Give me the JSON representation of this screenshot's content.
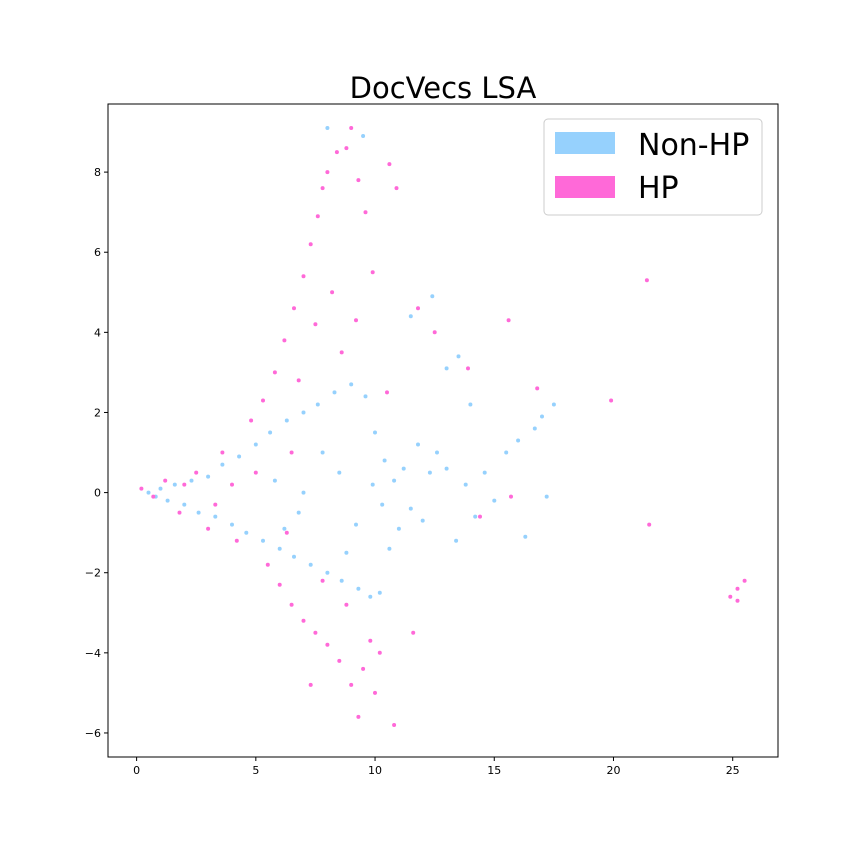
{
  "chart_data": {
    "type": "scatter",
    "title": "DocVecs LSA",
    "xlabel": "",
    "ylabel": "",
    "xlim": [
      -1.2,
      26.9
    ],
    "ylim": [
      -6.6,
      9.7
    ],
    "xticks": [
      0,
      5,
      10,
      15,
      20,
      25
    ],
    "yticks": [
      -6,
      -4,
      -2,
      0,
      2,
      4,
      6,
      8
    ],
    "grid": false,
    "legend_position": "top-right",
    "series": [
      {
        "name": "Non-HP",
        "color": "#96d1fd",
        "points": [
          [
            0.5,
            0.0
          ],
          [
            0.8,
            -0.1
          ],
          [
            1.0,
            0.1
          ],
          [
            1.3,
            -0.2
          ],
          [
            1.6,
            0.2
          ],
          [
            2.0,
            -0.3
          ],
          [
            2.3,
            0.3
          ],
          [
            2.6,
            -0.5
          ],
          [
            3.0,
            0.4
          ],
          [
            3.3,
            -0.6
          ],
          [
            3.6,
            0.7
          ],
          [
            4.0,
            -0.8
          ],
          [
            4.3,
            0.9
          ],
          [
            4.6,
            -1.0
          ],
          [
            5.0,
            1.2
          ],
          [
            5.3,
            -1.2
          ],
          [
            5.6,
            1.5
          ],
          [
            6.0,
            -1.4
          ],
          [
            6.3,
            1.8
          ],
          [
            6.6,
            -1.6
          ],
          [
            7.0,
            2.0
          ],
          [
            7.3,
            -1.8
          ],
          [
            7.6,
            2.2
          ],
          [
            8.0,
            -2.0
          ],
          [
            8.3,
            2.5
          ],
          [
            8.6,
            -2.2
          ],
          [
            9.0,
            2.7
          ],
          [
            9.3,
            -2.4
          ],
          [
            9.6,
            2.4
          ],
          [
            9.8,
            -2.6
          ],
          [
            10.0,
            1.5
          ],
          [
            10.2,
            -2.5
          ],
          [
            10.4,
            0.8
          ],
          [
            10.6,
            -1.4
          ],
          [
            10.8,
            0.3
          ],
          [
            11.0,
            -0.9
          ],
          [
            11.2,
            0.6
          ],
          [
            11.5,
            -0.4
          ],
          [
            11.8,
            1.2
          ],
          [
            12.0,
            -0.7
          ],
          [
            12.3,
            0.5
          ],
          [
            12.6,
            1.0
          ],
          [
            13.0,
            0.6
          ],
          [
            13.4,
            -1.2
          ],
          [
            13.8,
            0.2
          ],
          [
            14.2,
            -0.6
          ],
          [
            14.6,
            0.5
          ],
          [
            15.0,
            -0.2
          ],
          [
            15.5,
            1.0
          ],
          [
            16.0,
            1.3
          ],
          [
            16.3,
            -1.1
          ],
          [
            16.7,
            1.6
          ],
          [
            17.0,
            1.9
          ],
          [
            17.2,
            -0.1
          ],
          [
            17.5,
            2.2
          ],
          [
            12.4,
            4.9
          ],
          [
            13.0,
            3.1
          ],
          [
            13.5,
            3.4
          ],
          [
            14.0,
            2.2
          ],
          [
            11.5,
            4.4
          ],
          [
            8.0,
            9.1
          ],
          [
            9.5,
            8.9
          ],
          [
            7.0,
            0.0
          ],
          [
            8.5,
            0.5
          ],
          [
            9.2,
            -0.8
          ],
          [
            6.8,
            -0.5
          ],
          [
            7.8,
            1.0
          ],
          [
            9.9,
            0.2
          ],
          [
            10.3,
            -0.3
          ],
          [
            5.8,
            0.3
          ],
          [
            6.2,
            -0.9
          ],
          [
            8.8,
            -1.5
          ]
        ]
      },
      {
        "name": "HP",
        "color": "#ff69d8",
        "points": [
          [
            0.2,
            0.1
          ],
          [
            0.7,
            -0.1
          ],
          [
            1.2,
            0.3
          ],
          [
            1.8,
            -0.5
          ],
          [
            2.5,
            0.5
          ],
          [
            3.0,
            -0.9
          ],
          [
            3.6,
            1.0
          ],
          [
            4.2,
            -1.2
          ],
          [
            4.8,
            1.8
          ],
          [
            5.3,
            2.3
          ],
          [
            5.8,
            3.0
          ],
          [
            6.2,
            3.8
          ],
          [
            6.6,
            4.6
          ],
          [
            7.0,
            5.4
          ],
          [
            7.3,
            6.2
          ],
          [
            7.6,
            6.9
          ],
          [
            7.8,
            7.6
          ],
          [
            8.0,
            8.0
          ],
          [
            8.4,
            8.5
          ],
          [
            8.8,
            8.6
          ],
          [
            9.0,
            9.1
          ],
          [
            9.3,
            7.8
          ],
          [
            9.6,
            7.0
          ],
          [
            9.9,
            5.5
          ],
          [
            7.5,
            4.2
          ],
          [
            8.2,
            5.0
          ],
          [
            6.8,
            2.8
          ],
          [
            8.6,
            3.5
          ],
          [
            9.2,
            4.3
          ],
          [
            5.5,
            -1.8
          ],
          [
            6.0,
            -2.3
          ],
          [
            6.5,
            -2.8
          ],
          [
            7.0,
            -3.2
          ],
          [
            7.5,
            -3.5
          ],
          [
            8.0,
            -3.8
          ],
          [
            8.5,
            -4.2
          ],
          [
            9.0,
            -4.8
          ],
          [
            9.5,
            -4.4
          ],
          [
            9.8,
            -3.7
          ],
          [
            10.2,
            -4.0
          ],
          [
            9.3,
            -5.6
          ],
          [
            10.8,
            -5.8
          ],
          [
            7.3,
            -4.8
          ],
          [
            6.3,
            -1.0
          ],
          [
            7.8,
            -2.2
          ],
          [
            8.8,
            -2.8
          ],
          [
            5.0,
            0.5
          ],
          [
            6.5,
            1.0
          ],
          [
            10.5,
            2.5
          ],
          [
            10.9,
            7.6
          ],
          [
            10.6,
            8.2
          ],
          [
            11.8,
            4.6
          ],
          [
            12.5,
            4.0
          ],
          [
            13.9,
            3.1
          ],
          [
            15.6,
            4.3
          ],
          [
            16.8,
            2.6
          ],
          [
            19.9,
            2.3
          ],
          [
            21.4,
            5.3
          ],
          [
            21.5,
            -0.8
          ],
          [
            15.7,
            -0.1
          ],
          [
            14.4,
            -0.6
          ],
          [
            24.9,
            -2.6
          ],
          [
            25.2,
            -2.4
          ],
          [
            25.5,
            -2.2
          ],
          [
            25.2,
            -2.7
          ],
          [
            11.6,
            -3.5
          ],
          [
            10.0,
            -5.0
          ],
          [
            4.0,
            0.2
          ],
          [
            3.3,
            -0.3
          ],
          [
            2.0,
            0.2
          ]
        ]
      }
    ]
  }
}
